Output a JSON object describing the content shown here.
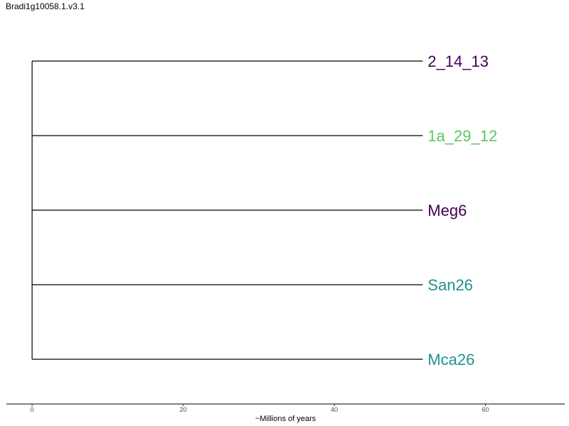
{
  "title": "Bradi1g10058.1.v3.1",
  "chart_data": {
    "type": "dendrogram",
    "xlabel": "~Millions of years",
    "xlim": [
      -3.4,
      70.5
    ],
    "x_ticks": [
      0,
      20,
      40,
      60
    ],
    "tips": [
      {
        "label": "2_14_13",
        "branch_length": 51.7,
        "color": "#440154"
      },
      {
        "label": "1a_29_12",
        "branch_length": 51.7,
        "color": "#5ac864"
      },
      {
        "label": "Meg6",
        "branch_length": 51.7,
        "color": "#440154"
      },
      {
        "label": "San26",
        "branch_length": 51.7,
        "color": "#21908c"
      },
      {
        "label": "Mca26",
        "branch_length": 51.7,
        "color": "#21908c"
      }
    ],
    "root_x": 0
  }
}
